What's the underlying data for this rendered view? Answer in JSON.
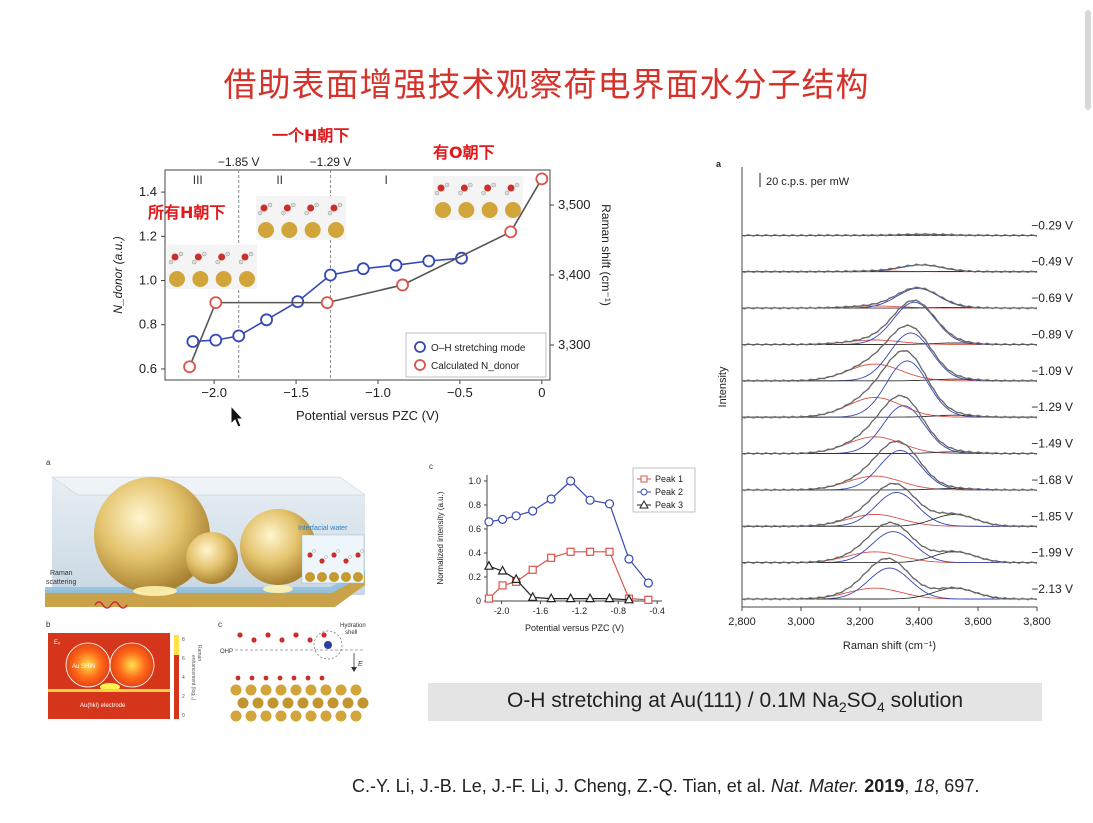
{
  "title": "借助表面增强技术观察荷电界面水分子结构",
  "annotations": {
    "one_h_down": "一个H朝下",
    "o_down": "有O朝下",
    "all_h_down": "所有H朝下"
  },
  "caption_bar": {
    "pre": "O-H stretching at Au(111) / 0.1M Na",
    "sub1": "2",
    "mid": "SO",
    "sub2": "4",
    "post": " solution"
  },
  "citation": {
    "authors": "C.-Y. Li, J.-B. Le, J.-F. Li, J. Cheng, Z.-Q. Tian, et al. ",
    "journal": "Nat. Mater.",
    "year": "2019",
    "volume": "18",
    "page": ", 697."
  },
  "chart_data": [
    {
      "type": "line",
      "xlabel": "Potential versus PZC (V)",
      "ylabel": "N_donor (a.u.)",
      "y2label": "Raman shift (cm⁻¹)",
      "xlim": [
        -2.3,
        0.05
      ],
      "ylim": [
        0.55,
        1.5
      ],
      "y2lim": [
        3250,
        3550
      ],
      "xticks": [
        "−2.0",
        "−1.5",
        "−1.0",
        "−0.5",
        "0"
      ],
      "yticks": [
        "0.6",
        "0.8",
        "1.0",
        "1.2",
        "1.4"
      ],
      "y2ticks": [
        "3,300",
        "3,400",
        "3,500"
      ],
      "regions": [
        "III",
        "II",
        "I"
      ],
      "region_bounds": [
        "−1.85 V",
        "−1.29 V"
      ],
      "series": [
        {
          "name": "O–H stretching mode",
          "color": "#3548b5",
          "axis": "y2",
          "x": [
            -2.13,
            -1.99,
            -1.85,
            -1.68,
            -1.49,
            -1.29,
            -1.09,
            -0.89,
            -0.69,
            -0.49
          ],
          "y": [
            3305,
            3307,
            3313,
            3336,
            3362,
            3400,
            3409,
            3414,
            3420,
            3424
          ]
        },
        {
          "name": "Calculated N_donor",
          "color": "#d9544a",
          "axis": "y",
          "x": [
            -2.15,
            -1.99,
            -1.31,
            -0.85,
            -0.19,
            0.0
          ],
          "y": [
            0.61,
            0.9,
            0.9,
            0.98,
            1.22,
            1.46
          ]
        }
      ]
    },
    {
      "type": "line",
      "panel": "c",
      "xlabel": "Potential versus PZC (V)",
      "ylabel": "Normalized intensity (a.u.)",
      "xlim": [
        -2.15,
        -0.35
      ],
      "ylim": [
        0,
        1.05
      ],
      "xticks": [
        "-2.0",
        "-1.6",
        "-1.2",
        "-0.8",
        "-0.4"
      ],
      "yticks": [
        "0",
        "0.2",
        "0.4",
        "0.6",
        "0.8",
        "1.0"
      ],
      "series": [
        {
          "name": "Peak 1",
          "color": "#d9544a",
          "marker": "square",
          "x": [
            -2.13,
            -1.99,
            -1.85,
            -1.68,
            -1.49,
            -1.29,
            -1.09,
            -0.89,
            -0.69,
            -0.49
          ],
          "y": [
            0.02,
            0.13,
            0.16,
            0.26,
            0.36,
            0.41,
            0.41,
            0.41,
            0.02,
            0.01
          ]
        },
        {
          "name": "Peak 2",
          "color": "#3548b5",
          "marker": "circle",
          "x": [
            -2.13,
            -1.99,
            -1.85,
            -1.68,
            -1.49,
            -1.29,
            -1.09,
            -0.89,
            -0.69,
            -0.49
          ],
          "y": [
            0.66,
            0.68,
            0.71,
            0.75,
            0.85,
            1.0,
            0.84,
            0.81,
            0.35,
            0.15
          ]
        },
        {
          "name": "Peak 3",
          "color": "#222222",
          "marker": "triangle",
          "x": [
            -2.13,
            -1.99,
            -1.85,
            -1.68,
            -1.49,
            -1.29,
            -1.09,
            -0.89,
            -0.69
          ],
          "y": [
            0.29,
            0.25,
            0.18,
            0.03,
            0.02,
            0.02,
            0.02,
            0.02,
            0.01
          ]
        }
      ]
    },
    {
      "type": "line",
      "panel": "a",
      "xlabel": "Raman shift (cm⁻¹)",
      "ylabel": "Intensity",
      "xlim": [
        2800,
        3800
      ],
      "xticks": [
        "2,800",
        "3,000",
        "3,200",
        "3,400",
        "3,600",
        "3,800"
      ],
      "scale_bar": "20 c.p.s. per mW",
      "series_labels": [
        "−0.29 V",
        "−0.49 V",
        "−0.69 V",
        "−0.89 V",
        "−1.09 V",
        "−1.29 V",
        "−1.49 V",
        "−1.68 V",
        "−1.85 V",
        "−1.99 V",
        "−2.13 V"
      ],
      "peak_amplitude": [
        0.02,
        0.12,
        0.35,
        0.75,
        0.85,
        1.0,
        0.85,
        0.7,
        0.6,
        0.55,
        0.55
      ]
    }
  ],
  "schematic": {
    "interfacial_water": "Interfacial water",
    "raman": "Raman",
    "scattering": "scattering",
    "au_shin": "Au SHIN",
    "electrode": "Au(hkl) electrode",
    "e0": "E₀",
    "raman_enh_1": "Raman",
    "raman_enh_2": "enhancement (log₁₀)",
    "scale": [
      "8",
      "6",
      "4",
      "2",
      "0"
    ],
    "ohp": "OHP",
    "hydration_1": "Hydration",
    "hydration_2": "shell",
    "field": "E",
    "panel_a": "a",
    "panel_b": "b",
    "panel_c": "c",
    "panel_c2": "c",
    "panel_a2": "a"
  }
}
